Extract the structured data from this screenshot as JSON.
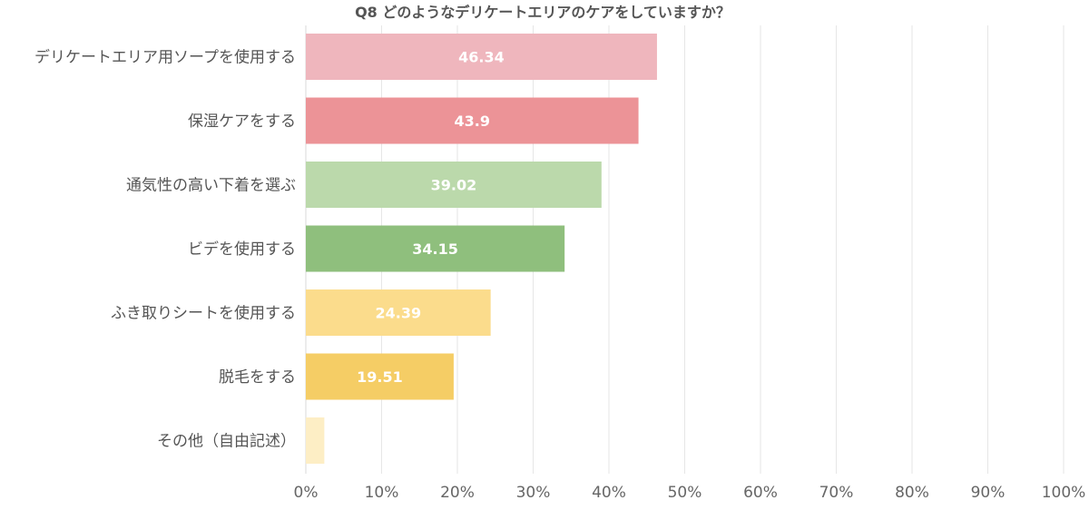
{
  "chart_data": {
    "type": "bar",
    "orientation": "horizontal",
    "title": "Q8 どのようなデリケートエリアのケアをしていますか？",
    "categories": [
      "デリケートエリア用ソープを使用する",
      "保湿ケアをする",
      "通気性の高い下着を選ぶ",
      "ビデを使用する",
      "ふき取りシートを使用する",
      "脱毛をする",
      "その他（自由記述）"
    ],
    "values": [
      46.34,
      43.9,
      39.02,
      34.15,
      24.39,
      19.51,
      2.44
    ],
    "value_labels": [
      "46.34",
      "43.9",
      "39.02",
      "34.15",
      "24.39",
      "19.51",
      ""
    ],
    "colors": [
      "#efb6bd",
      "#ec9397",
      "#bbd9ab",
      "#8fbf7d",
      "#fbdc8c",
      "#f5cd65",
      "#fdeec5"
    ],
    "xlim": [
      0,
      100
    ],
    "x_ticks": [
      "0%",
      "10%",
      "20%",
      "30%",
      "40%",
      "50%",
      "60%",
      "70%",
      "80%",
      "90%",
      "100%"
    ],
    "grid": true,
    "legend": "none"
  }
}
